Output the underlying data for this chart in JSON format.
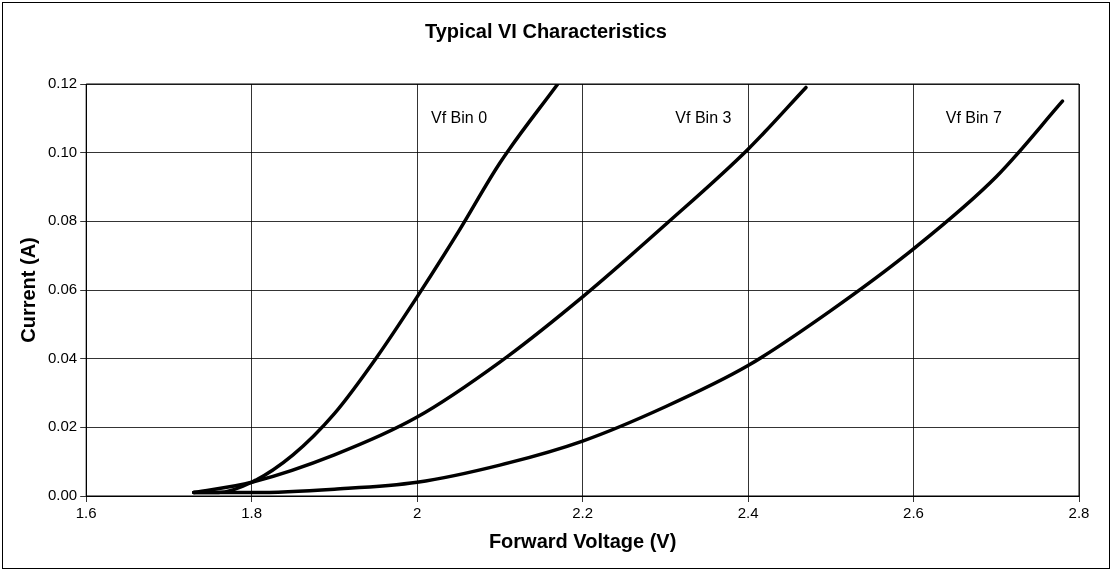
{
  "chart_data": {
    "type": "line",
    "title": "Typical VI Characteristics",
    "xlabel": "Forward Voltage (V)",
    "ylabel": "Current (A)",
    "xlim": [
      1.6,
      2.8
    ],
    "xticks": [
      1.6,
      1.8,
      {
        "value": 2,
        "label": "2"
      },
      2.2,
      2.4,
      2.6,
      2.8
    ],
    "ylim": [
      0,
      0.12
    ],
    "yticks": [
      {
        "value": 0,
        "label": "0.00"
      },
      {
        "value": 0.02,
        "label": "0.02"
      },
      {
        "value": 0.04,
        "label": "0.04"
      },
      {
        "value": 0.06,
        "label": "0.06"
      },
      {
        "value": 0.08,
        "label": "0.08"
      },
      {
        "value": 0.1,
        "label": "0.10"
      },
      {
        "value": 0.12,
        "label": "0.12"
      }
    ],
    "grid": true,
    "legend": false,
    "marker": "none",
    "line_style": "solid",
    "series": [
      {
        "name": "Vf Bin 0",
        "color": "#000000",
        "x": [
          1.73,
          1.76,
          1.8,
          1.85,
          1.9,
          1.95,
          2.0,
          2.05,
          2.1,
          2.17
        ],
        "values": [
          0.001,
          0.001,
          0.004,
          0.012,
          0.024,
          0.04,
          0.058,
          0.077,
          0.097,
          0.12
        ]
      },
      {
        "name": "Vf Bin 3",
        "color": "#000000",
        "x": [
          1.73,
          1.8,
          1.9,
          2.0,
          2.1,
          2.2,
          2.3,
          2.4,
          2.47
        ],
        "values": [
          0.001,
          0.004,
          0.012,
          0.023,
          0.039,
          0.058,
          0.079,
          0.101,
          0.119
        ]
      },
      {
        "name": "Vf Bin 7",
        "color": "#000000",
        "x": [
          1.73,
          1.8,
          1.9,
          2.0,
          2.1,
          2.2,
          2.3,
          2.4,
          2.5,
          2.6,
          2.7,
          2.78
        ],
        "values": [
          0.001,
          0.001,
          0.002,
          0.004,
          0.009,
          0.016,
          0.026,
          0.038,
          0.054,
          0.072,
          0.093,
          0.115
        ]
      }
    ]
  }
}
